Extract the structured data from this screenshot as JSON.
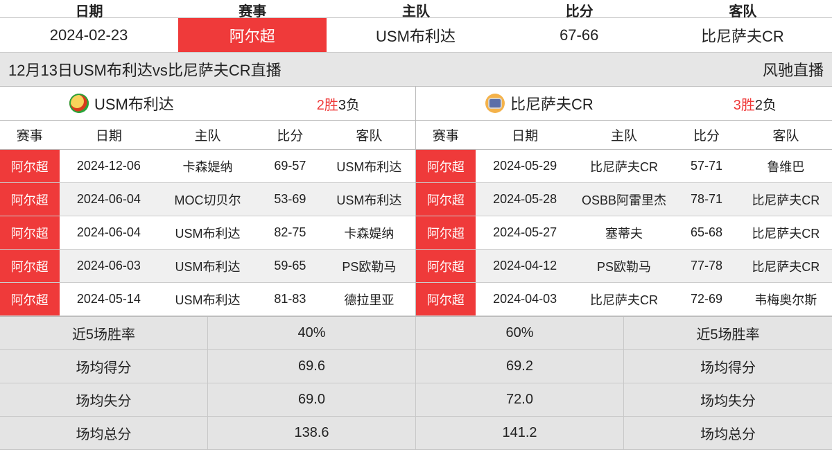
{
  "top_header": [
    "日期",
    "赛事",
    "主队",
    "比分",
    "客队"
  ],
  "top_row": {
    "date": "2024-02-23",
    "league": "阿尔超",
    "home": "USM布利达",
    "score": "67-66",
    "away": "比尼萨夫CR"
  },
  "subtitle_left": "12月13日USM布利达vs比尼萨夫CR直播",
  "subtitle_right": "风驰直播",
  "columns": [
    "赛事",
    "日期",
    "主队",
    "比分",
    "客队"
  ],
  "left": {
    "team": "USM布利达",
    "wins": "2胜",
    "losses": "3负",
    "rows": [
      {
        "lg": "阿尔超",
        "dt": "2024-12-06",
        "h": "卡森媞纳",
        "sc": "69-57",
        "a": "USM布利达"
      },
      {
        "lg": "阿尔超",
        "dt": "2024-06-04",
        "h": "MOC切贝尔",
        "sc": "53-69",
        "a": "USM布利达"
      },
      {
        "lg": "阿尔超",
        "dt": "2024-06-04",
        "h": "USM布利达",
        "sc": "82-75",
        "a": "卡森媞纳"
      },
      {
        "lg": "阿尔超",
        "dt": "2024-06-03",
        "h": "USM布利达",
        "sc": "59-65",
        "a": "PS欧勒马"
      },
      {
        "lg": "阿尔超",
        "dt": "2024-05-14",
        "h": "USM布利达",
        "sc": "81-83",
        "a": "德拉里亚"
      }
    ]
  },
  "right": {
    "team": "比尼萨夫CR",
    "wins": "3胜",
    "losses": "2负",
    "rows": [
      {
        "lg": "阿尔超",
        "dt": "2024-05-29",
        "h": "比尼萨夫CR",
        "sc": "57-71",
        "a": "鲁维巴"
      },
      {
        "lg": "阿尔超",
        "dt": "2024-05-28",
        "h": "OSBB阿雷里杰",
        "sc": "78-71",
        "a": "比尼萨夫CR"
      },
      {
        "lg": "阿尔超",
        "dt": "2024-05-27",
        "h": "塞蒂夫",
        "sc": "65-68",
        "a": "比尼萨夫CR"
      },
      {
        "lg": "阿尔超",
        "dt": "2024-04-12",
        "h": "PS欧勒马",
        "sc": "77-78",
        "a": "比尼萨夫CR"
      },
      {
        "lg": "阿尔超",
        "dt": "2024-04-03",
        "h": "比尼萨夫CR",
        "sc": "72-69",
        "a": "韦梅奥尔斯"
      }
    ]
  },
  "stats": {
    "labels": {
      "winrate": "近5场胜率",
      "avg_score": "场均得分",
      "avg_conceded": "场均失分",
      "avg_total": "场均总分"
    },
    "left": {
      "winrate": "40%",
      "avg_score": "69.6",
      "avg_conceded": "69.0",
      "avg_total": "138.6"
    },
    "right": {
      "winrate": "60%",
      "avg_score": "69.2",
      "avg_conceded": "72.0",
      "avg_total": "141.2"
    }
  },
  "colors": {
    "red": "#ef3a3a",
    "row_alt": "#f0f0f0",
    "stat_bg": "#e4e4e4",
    "subtitle_bg": "#e6e6e6",
    "border": "#bbbbbb",
    "text": "#222222"
  }
}
